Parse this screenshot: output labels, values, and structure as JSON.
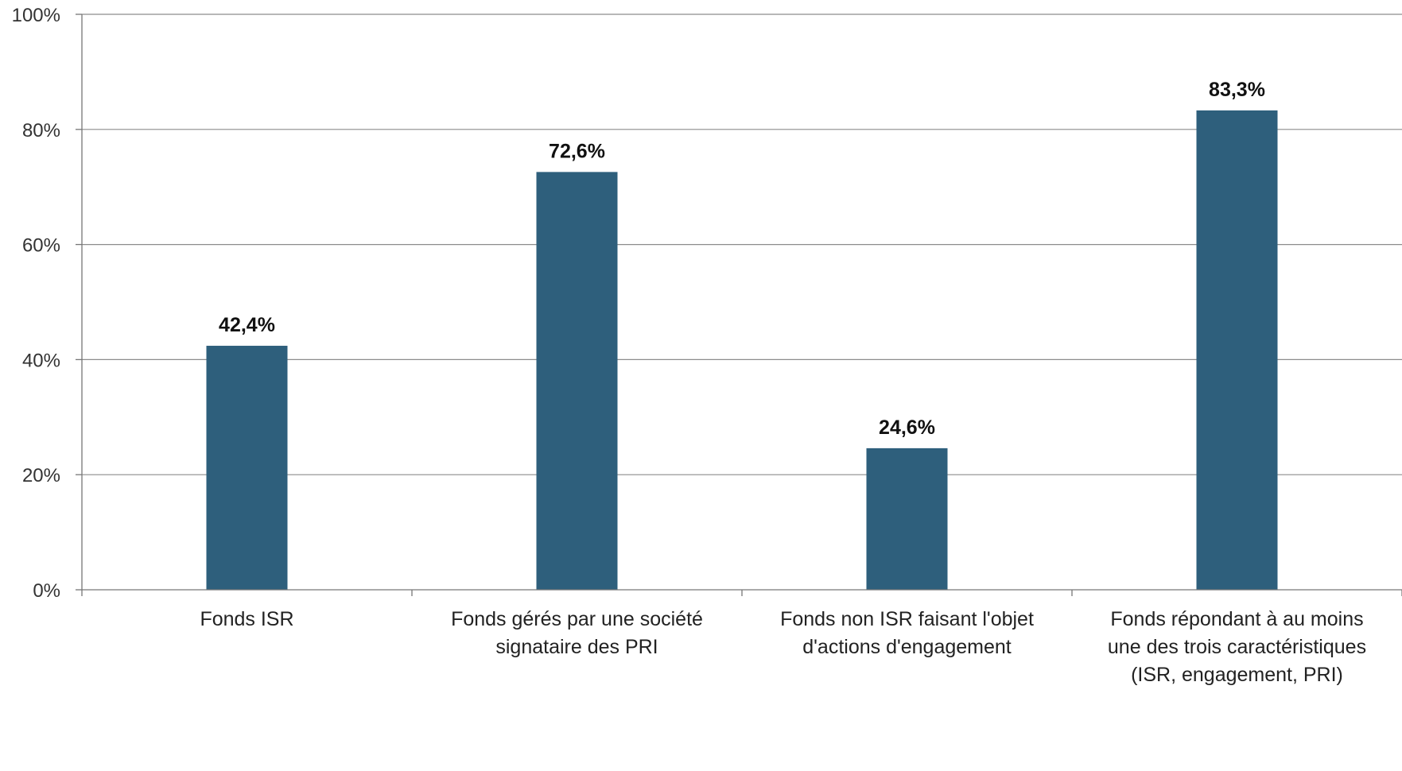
{
  "chart_data": {
    "type": "bar",
    "title": "",
    "xlabel": "",
    "ylabel": "",
    "ylim": [
      0,
      100
    ],
    "yticks": [
      0,
      20,
      40,
      60,
      80,
      100
    ],
    "ytick_labels": [
      "0%",
      "20%",
      "40%",
      "60%",
      "80%",
      "100%"
    ],
    "grid": true,
    "categories": [
      [
        "Fonds ISR"
      ],
      [
        "Fonds gérés par une société",
        "signataire des PRI"
      ],
      [
        "Fonds non ISR faisant l'objet",
        "d'actions d'engagement"
      ],
      [
        "Fonds répondant à au moins",
        "une des trois caractéristiques",
        "(ISR, engagement, PRI)"
      ]
    ],
    "values": [
      42.4,
      72.6,
      24.6,
      83.3
    ],
    "data_labels": [
      "42,4%",
      "72,6%",
      "24,6%",
      "83,3%"
    ],
    "bar_color": "#2e5f7c"
  }
}
